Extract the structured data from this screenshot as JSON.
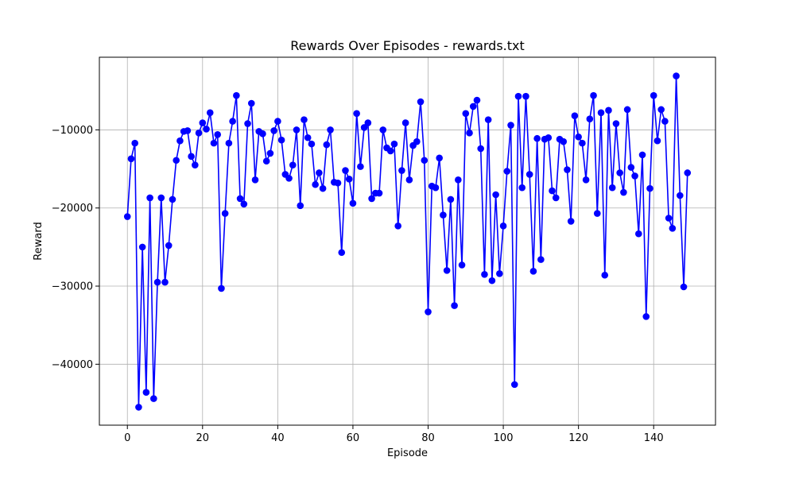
{
  "chart_data": {
    "type": "line",
    "title": "Rewards Over Episodes - rewards.txt",
    "xlabel": "Episode",
    "ylabel": "Reward",
    "xlim": [
      -7.45,
      156.45
    ],
    "ylim": [
      -47800,
      -700
    ],
    "xticks": [
      0,
      20,
      40,
      60,
      80,
      100,
      120,
      140
    ],
    "yticks": [
      -40000,
      -30000,
      -20000,
      -10000
    ],
    "ytick_labels": [
      "−40000",
      "−30000",
      "−20000",
      "−10000"
    ],
    "grid": true,
    "legend": false,
    "series": [
      {
        "color": "#0000ff",
        "marker": "circle",
        "x": [
          0,
          1,
          2,
          3,
          4,
          5,
          6,
          7,
          8,
          9,
          10,
          11,
          12,
          13,
          14,
          15,
          16,
          17,
          18,
          19,
          20,
          21,
          22,
          23,
          24,
          25,
          26,
          27,
          28,
          29,
          30,
          31,
          32,
          33,
          34,
          35,
          36,
          37,
          38,
          39,
          40,
          41,
          42,
          43,
          44,
          45,
          46,
          47,
          48,
          49,
          50,
          51,
          52,
          53,
          54,
          55,
          56,
          57,
          58,
          59,
          60,
          61,
          62,
          63,
          64,
          65,
          66,
          67,
          68,
          69,
          70,
          71,
          72,
          73,
          74,
          75,
          76,
          77,
          78,
          79,
          80,
          81,
          82,
          83,
          84,
          85,
          86,
          87,
          88,
          89,
          90,
          91,
          92,
          93,
          94,
          95,
          96,
          97,
          98,
          99,
          100,
          101,
          102,
          103,
          104,
          105,
          106,
          107,
          108,
          109,
          110,
          111,
          112,
          113,
          114,
          115,
          116,
          117,
          118,
          119,
          120,
          121,
          122,
          123,
          124,
          125,
          126,
          127,
          128,
          129,
          130,
          131,
          132,
          133,
          134,
          135,
          136,
          137,
          138,
          139,
          140,
          141,
          142,
          143,
          144,
          145,
          146,
          147,
          148,
          149
        ],
        "y": [
          -21100,
          -13700,
          -11700,
          -45500,
          -25000,
          -43600,
          -18700,
          -44400,
          -29500,
          -18700,
          -29500,
          -24800,
          -18900,
          -13900,
          -11400,
          -10200,
          -10100,
          -13400,
          -14500,
          -10400,
          -9100,
          -9900,
          -7800,
          -11700,
          -10600,
          -30300,
          -20700,
          -11700,
          -8900,
          -5600,
          -18800,
          -19500,
          -9200,
          -6600,
          -16400,
          -10200,
          -10500,
          -14000,
          -13000,
          -10100,
          -8900,
          -11300,
          -15700,
          -16200,
          -14500,
          -10000,
          -19700,
          -8700,
          -11000,
          -11800,
          -17000,
          -15500,
          -17500,
          -11900,
          -10000,
          -16700,
          -16800,
          -25700,
          -15200,
          -16300,
          -19400,
          -7900,
          -14700,
          -9700,
          -9100,
          -18800,
          -18100,
          -18100,
          -10000,
          -12300,
          -12700,
          -11800,
          -22300,
          -15200,
          -9100,
          -16400,
          -12000,
          -11500,
          -6400,
          -13900,
          -33300,
          -17200,
          -17400,
          -13600,
          -20900,
          -28000,
          -18900,
          -32500,
          -16400,
          -27300,
          -7900,
          -10400,
          -7000,
          -6200,
          -12400,
          -28500,
          -8700,
          -29300,
          -18300,
          -28400,
          -22300,
          -15300,
          -9400,
          -42600,
          -5700,
          -17400,
          -5700,
          -15700,
          -28100,
          -11100,
          -26600,
          -11200,
          -11000,
          -17800,
          -18700,
          -11200,
          -11500,
          -15100,
          -21700,
          -8200,
          -10900,
          -11700,
          -16400,
          -8600,
          -5600,
          -20700,
          -7800,
          -28600,
          -7500,
          -17400,
          -9200,
          -15500,
          -18000,
          -7400,
          -14800,
          -15900,
          -23300,
          -13200,
          -33900,
          -17500,
          -5600,
          -11400,
          -7400,
          -8900,
          -21300,
          -22600,
          -3100,
          -18400,
          -30100,
          -15500
        ]
      }
    ]
  }
}
